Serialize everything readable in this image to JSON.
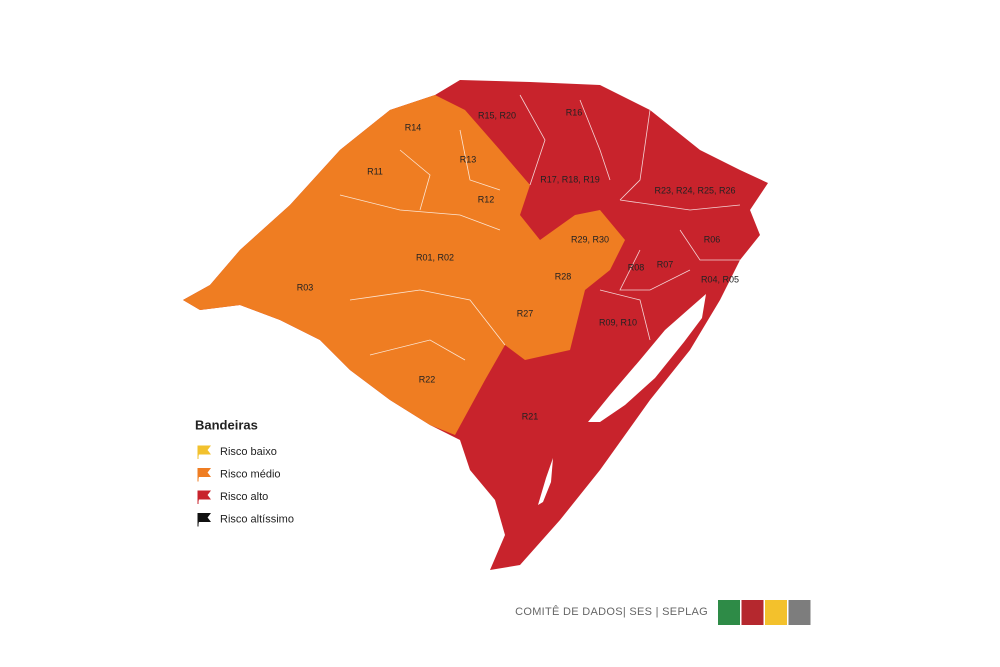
{
  "map": {
    "regions": [
      "R14",
      "R15, R20",
      "R16",
      "R13",
      "R11",
      "R17, R18, R19",
      "R23, R24, R25, R26",
      "R12",
      "R29, R30",
      "R06",
      "R01, R02",
      "R08",
      "R07",
      "R03",
      "R28",
      "R04, R05",
      "R27",
      "R09, R10",
      "R22",
      "R21"
    ],
    "legend": {
      "title": "Bandeiras",
      "items": [
        {
          "label": "Risco baixo",
          "color": "#f2c12e"
        },
        {
          "label": "Risco médio",
          "color": "#ef7d22"
        },
        {
          "label": "Risco alto",
          "color": "#c8232c"
        },
        {
          "label": "Risco altíssimo",
          "color": "#111111"
        }
      ]
    },
    "footer": {
      "text": "COMITÊ DE DADOS|  SES  |  SEPLAG",
      "swatches": [
        "#2e8b47",
        "#b5282e",
        "#f3c12c",
        "#7d7d7d"
      ]
    }
  }
}
